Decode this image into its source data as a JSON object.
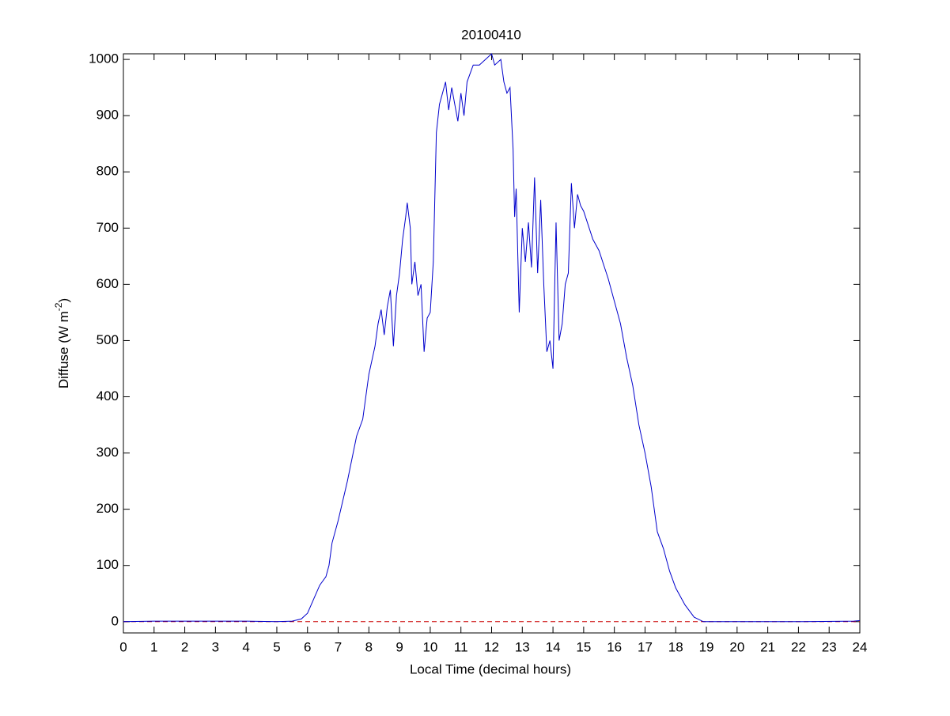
{
  "chart_data": {
    "type": "line",
    "title": "20100410",
    "xlabel": "Local Time (decimal hours)",
    "ylabel": "Diffuse (W m",
    "ylabel_sup": "-2",
    "ylabel_end": ")",
    "xlim": [
      0,
      24
    ],
    "ylim": [
      -20,
      1010
    ],
    "xticks": [
      0,
      1,
      2,
      3,
      4,
      5,
      6,
      7,
      8,
      9,
      10,
      11,
      12,
      13,
      14,
      15,
      16,
      17,
      18,
      19,
      20,
      21,
      22,
      23,
      24
    ],
    "yticks": [
      0,
      100,
      200,
      300,
      400,
      500,
      600,
      700,
      800,
      900,
      1000
    ],
    "reference_line": {
      "value": 0,
      "color": "#cc0000",
      "dash": true
    },
    "x": [
      0,
      1,
      2,
      3,
      4,
      5,
      5.5,
      5.8,
      6.0,
      6.2,
      6.4,
      6.6,
      6.7,
      6.8,
      7.0,
      7.3,
      7.6,
      7.8,
      8.0,
      8.2,
      8.3,
      8.4,
      8.5,
      8.6,
      8.7,
      8.8,
      8.9,
      9.0,
      9.1,
      9.2,
      9.25,
      9.35,
      9.4,
      9.5,
      9.6,
      9.7,
      9.8,
      9.9,
      10.0,
      10.1,
      10.2,
      10.3,
      10.5,
      10.6,
      10.7,
      10.9,
      11.0,
      11.1,
      11.2,
      11.4,
      11.6,
      11.8,
      12.0,
      12.1,
      12.3,
      12.4,
      12.5,
      12.6,
      12.7,
      12.75,
      12.8,
      12.9,
      13.0,
      13.1,
      13.2,
      13.3,
      13.4,
      13.5,
      13.6,
      13.7,
      13.8,
      13.9,
      14.0,
      14.1,
      14.2,
      14.3,
      14.4,
      14.5,
      14.6,
      14.7,
      14.8,
      14.9,
      15.0,
      15.3,
      15.5,
      15.8,
      16.0,
      16.2,
      16.4,
      16.6,
      16.8,
      17.0,
      17.2,
      17.35,
      17.4,
      17.6,
      17.8,
      18.0,
      18.3,
      18.6,
      18.9,
      19.0,
      20,
      22,
      23.8,
      24
    ],
    "series": [
      {
        "name": "Diffuse",
        "color": "#0000cc",
        "values": [
          0,
          1,
          1,
          1,
          1,
          0,
          1,
          5,
          15,
          40,
          65,
          80,
          100,
          140,
          180,
          250,
          330,
          360,
          440,
          490,
          530,
          555,
          510,
          560,
          590,
          490,
          580,
          620,
          680,
          720,
          745,
          700,
          600,
          640,
          580,
          600,
          480,
          540,
          550,
          640,
          870,
          920,
          960,
          910,
          950,
          890,
          940,
          900,
          960,
          990,
          990,
          1000,
          1010,
          990,
          1000,
          960,
          940,
          950,
          840,
          720,
          770,
          550,
          700,
          640,
          710,
          630,
          790,
          620,
          750,
          600,
          480,
          500,
          450,
          710,
          500,
          530,
          600,
          620,
          780,
          700,
          760,
          740,
          730,
          680,
          660,
          610,
          570,
          530,
          470,
          420,
          350,
          300,
          240,
          180,
          160,
          130,
          90,
          60,
          30,
          8,
          0,
          0,
          0,
          0,
          1,
          2
        ]
      }
    ],
    "grid": false
  }
}
